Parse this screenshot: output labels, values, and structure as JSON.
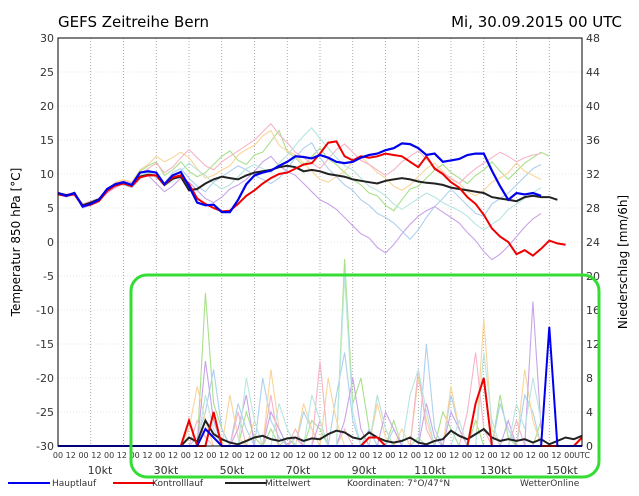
{
  "chart_data": {
    "type": "line",
    "title": "GEFS Zeitreihe Bern",
    "run_date": "Mi, 30.09.2015 00 UTC",
    "ylabel_left": "Temperatur 850 hPa [°C]",
    "ylabel_right": "Niederschlag [mm/6h]",
    "ylim_left": [
      -30,
      30
    ],
    "ylim_right": [
      0,
      48
    ],
    "yticks_left": [
      "30",
      "25",
      "20",
      "15",
      "10",
      "5",
      "0",
      "-5",
      "-10",
      "-15",
      "-20",
      "-25",
      "-30"
    ],
    "yticks_right": [
      "48",
      "44",
      "40",
      "36",
      "32",
      "28",
      "24",
      "20",
      "16",
      "12",
      "8",
      "4",
      "0"
    ],
    "time_ticks": [
      "00",
      "12",
      "00",
      "12",
      "00",
      "12",
      "00",
      "12",
      "00",
      "12",
      "00",
      "12",
      "00",
      "12",
      "00",
      "12",
      "00",
      "12",
      "00",
      "12",
      "00",
      "12",
      "00",
      "12",
      "00",
      "12",
      "00",
      "12",
      "00",
      "12",
      "00",
      "12",
      "00",
      "12",
      "00",
      "12",
      "00",
      "12",
      "00",
      "12",
      "00",
      "UTC"
    ],
    "wind_ticks": [
      "10kt",
      "30kt",
      "50kt",
      "70kt",
      "90kt",
      "110kt",
      "130kt",
      "150kt"
    ],
    "legend": [
      "Hauptlauf",
      "Kontrolllauf",
      "Mittelwert",
      "Koordinaten: 7°O/47°N",
      "WetterOnline"
    ],
    "steps_hours": 6,
    "temperature": {
      "hauptlauf": [
        7.2,
        6.8,
        7.2,
        5.2,
        5.6,
        6.2,
        7.8,
        8.5,
        8.8,
        8.4,
        10.2,
        10.4,
        10.2,
        8.5,
        9.8,
        10.3,
        8.2,
        5.8,
        5.4,
        5.5,
        4.4,
        4.4,
        6.2,
        8.5,
        9.8,
        10.2,
        10.5,
        11.2,
        11.8,
        12.6,
        12.5,
        12.3,
        12.8,
        12.4,
        11.8,
        11.6,
        11.8,
        12.4,
        12.8,
        13.0,
        13.5,
        13.8,
        14.5,
        14.4,
        13.8,
        12.8,
        13.0,
        11.8,
        12.0,
        12.2,
        12.8,
        13.0,
        13.0,
        10.5,
        8.2,
        6.2,
        7.2,
        7.0,
        7.2,
        6.8
      ],
      "kontrolllauf": [
        7.0,
        6.8,
        7.0,
        5.3,
        5.5,
        6.0,
        7.5,
        8.3,
        8.6,
        8.2,
        9.5,
        9.8,
        9.8,
        8.4,
        9.5,
        9.8,
        8.5,
        6.4,
        5.6,
        5.0,
        4.5,
        4.6,
        5.6,
        6.8,
        7.6,
        8.6,
        9.4,
        10.0,
        10.2,
        10.8,
        11.4,
        11.6,
        13.0,
        14.6,
        14.8,
        12.6,
        12.0,
        12.6,
        12.4,
        12.6,
        13.0,
        12.8,
        12.6,
        11.8,
        11.0,
        12.6,
        10.8,
        10.0,
        8.8,
        8.0,
        6.6,
        5.6,
        4.0,
        2.0,
        0.8,
        0.0,
        -1.8,
        -1.2,
        -2.0,
        -1.0,
        0.2,
        -0.2,
        -0.4
      ],
      "mittelwert": [
        7.2,
        6.9,
        7.1,
        5.4,
        5.8,
        6.3,
        7.6,
        8.4,
        8.7,
        8.3,
        9.6,
        9.9,
        9.8,
        8.4,
        9.3,
        9.6,
        7.6,
        7.8,
        8.6,
        9.2,
        9.6,
        9.4,
        9.2,
        9.8,
        10.2,
        10.4,
        10.6,
        11.0,
        11.2,
        11.0,
        10.4,
        10.6,
        10.4,
        10.0,
        9.8,
        9.6,
        9.2,
        9.0,
        8.8,
        8.6,
        9.0,
        9.2,
        9.4,
        9.2,
        8.9,
        8.7,
        8.6,
        8.4,
        8.0,
        7.8,
        7.6,
        7.4,
        7.2,
        6.6,
        6.4,
        6.2,
        6.0,
        6.6,
        6.8,
        6.6,
        6.6,
        6.2
      ],
      "members": [
        [
          7.0,
          6.7,
          7.3,
          5.2,
          5.8,
          6.4,
          7.8,
          8.2,
          8.9,
          8.6,
          10.4,
          11.2,
          11.8,
          9.8,
          10.6,
          11.8,
          10.4,
          9.6,
          10.2,
          11.4,
          12.6,
          13.4,
          12.0,
          11.4,
          12.8,
          13.2,
          14.8,
          16.4,
          13.2,
          12.4,
          11.2,
          12.6,
          13.8,
          12.2,
          11.4,
          10.2,
          9.2,
          8.4,
          7.2,
          6.8,
          5.4,
          4.6,
          6.2,
          7.8,
          8.2,
          9.4,
          10.6,
          11.4,
          10.2,
          9.4,
          8.6,
          9.8,
          10.6,
          11.8,
          10.4,
          9.2,
          10.4,
          11.6,
          12.4,
          13.2,
          12.6
        ],
        [
          7.1,
          6.9,
          7.0,
          5.4,
          5.6,
          6.0,
          7.4,
          8.6,
          8.4,
          8.0,
          9.2,
          10.6,
          9.4,
          8.6,
          10.2,
          10.8,
          9.4,
          8.2,
          7.4,
          8.8,
          9.6,
          10.4,
          11.2,
          10.6,
          9.8,
          9.2,
          8.6,
          9.4,
          10.8,
          12.4,
          13.8,
          14.6,
          12.4,
          10.8,
          9.6,
          8.4,
          7.6,
          6.2,
          5.4,
          4.2,
          3.6,
          2.8,
          1.6,
          0.4,
          1.8,
          3.6,
          5.2,
          6.4,
          7.8,
          6.6,
          5.4,
          4.2,
          3.8,
          5.6,
          6.4,
          7.2,
          8.4,
          9.6,
          10.8,
          11.4
        ],
        [
          7.3,
          6.8,
          7.2,
          5.5,
          5.9,
          6.2,
          7.6,
          8.8,
          9.2,
          8.8,
          10.6,
          11.4,
          12.6,
          11.8,
          12.4,
          13.2,
          12.4,
          10.8,
          9.4,
          9.8,
          10.6,
          11.2,
          12.8,
          13.6,
          14.2,
          15.6,
          16.4,
          14.2,
          13.4,
          12.8,
          11.6,
          10.4,
          9.2,
          8.8,
          9.6,
          10.4,
          11.8,
          12.6,
          11.4,
          10.2,
          9.4,
          8.2,
          7.6,
          8.4,
          9.6,
          10.8,
          11.6,
          10.4,
          9.2,
          8.6,
          7.4,
          6.8,
          7.6,
          8.8,
          9.4,
          10.2,
          11.6,
          10.4,
          9.8,
          9.2
        ],
        [
          7.0,
          6.6,
          7.1,
          5.0,
          5.4,
          6.1,
          7.2,
          8.0,
          8.6,
          8.2,
          9.4,
          9.8,
          8.6,
          7.4,
          8.2,
          9.4,
          8.8,
          7.6,
          6.4,
          5.8,
          6.6,
          7.8,
          8.4,
          9.2,
          10.4,
          11.8,
          12.6,
          11.2,
          10.4,
          9.8,
          8.6,
          7.4,
          6.2,
          5.6,
          4.8,
          3.6,
          2.4,
          1.2,
          0.6,
          -0.8,
          -1.6,
          -0.4,
          1.2,
          2.6,
          3.8,
          4.6,
          5.2,
          4.4,
          3.6,
          2.8,
          1.4,
          0.2,
          -1.4,
          -2.6,
          -1.8,
          -0.6,
          0.8,
          2.2,
          3.4,
          4.2
        ],
        [
          7.2,
          7.0,
          7.3,
          5.6,
          6.0,
          6.4,
          7.8,
          8.6,
          9.0,
          8.7,
          10.0,
          10.8,
          11.6,
          10.2,
          11.0,
          12.4,
          13.6,
          12.4,
          11.2,
          10.6,
          11.8,
          12.6,
          13.4,
          14.2,
          15.0,
          16.2,
          17.4,
          15.8,
          14.6,
          13.2,
          12.4,
          11.6,
          10.8,
          12.2,
          13.6,
          14.4,
          13.2,
          12.0,
          11.4,
          10.6,
          9.8,
          10.6,
          11.8,
          12.6,
          13.4,
          12.2,
          11.0,
          10.2,
          9.4,
          8.6,
          9.8,
          10.8,
          11.6,
          12.4,
          13.2,
          12.6,
          11.8,
          12.4,
          12.8,
          13.0
        ],
        [
          7.1,
          6.8,
          7.0,
          5.3,
          5.7,
          6.3,
          7.5,
          8.4,
          8.8,
          8.5,
          9.8,
          10.2,
          9.6,
          8.2,
          9.0,
          10.4,
          11.6,
          10.6,
          9.8,
          8.6,
          7.8,
          8.4,
          9.6,
          10.8,
          11.4,
          10.8,
          10.2,
          11.6,
          12.8,
          14.2,
          15.6,
          16.8,
          15.2,
          13.8,
          12.4,
          11.2,
          10.6,
          9.4,
          8.2,
          7.6,
          6.8,
          5.6,
          4.8,
          5.6,
          6.4,
          7.2,
          6.6,
          5.8,
          5.2,
          4.6,
          3.8,
          2.6,
          1.8,
          2.6,
          3.4,
          4.8,
          5.6,
          6.4,
          7.2,
          8.0
        ]
      ]
    },
    "precipitation_mm6h": {
      "hauptlauf": [
        0,
        0,
        0,
        0,
        0,
        0,
        0,
        0,
        0,
        0,
        0,
        0,
        0,
        0,
        0,
        0,
        0,
        0,
        2,
        1,
        0,
        0,
        0,
        0,
        0,
        0,
        0,
        0,
        0,
        0,
        0,
        0,
        0,
        0,
        0,
        0,
        0,
        0,
        0,
        0,
        0,
        0,
        0,
        0,
        0,
        0,
        0,
        0,
        0,
        0,
        0,
        0,
        0,
        0,
        0,
        0,
        0,
        0,
        0,
        0,
        14,
        0,
        0,
        0,
        0
      ],
      "kontrolllauf": [
        0,
        0,
        0,
        0,
        0,
        0,
        0,
        0,
        0,
        0,
        0,
        0,
        0,
        0,
        0,
        0,
        3,
        0,
        0,
        4,
        0,
        0,
        0,
        0,
        0,
        0,
        0,
        0,
        0,
        0,
        0,
        0,
        0,
        0,
        0,
        0,
        0,
        0,
        1,
        1,
        0,
        0,
        0,
        0,
        0,
        0,
        0,
        0,
        0,
        0,
        0,
        5,
        8,
        0,
        0,
        0,
        0,
        0,
        0,
        0,
        0,
        0,
        0,
        0,
        1,
        1
      ],
      "mittelwert": [
        0,
        0,
        0,
        0,
        0,
        0,
        0,
        0,
        0,
        0,
        0,
        0,
        0,
        0,
        0,
        0,
        1,
        0.5,
        3,
        1.4,
        0.8,
        0.4,
        0.2,
        0.6,
        1.0,
        1.2,
        0.8,
        0.6,
        0.9,
        1.0,
        0.6,
        0.9,
        0.8,
        1.4,
        1.8,
        1.6,
        1.0,
        0.8,
        1.6,
        1.0,
        0.6,
        0.4,
        0.6,
        1.0,
        0.4,
        0.2,
        0.6,
        0.8,
        1.8,
        1.2,
        0.8,
        1.4,
        2.0,
        1.0,
        0.6,
        0.8,
        0.6,
        0.8,
        0.4,
        0.8,
        0.2,
        0.6,
        1.0,
        0.8,
        1.2,
        1.0
      ],
      "members": [
        [
          0,
          0,
          0,
          0,
          0,
          0,
          0,
          0,
          0,
          0,
          0,
          0,
          0,
          0,
          0,
          0,
          0,
          0,
          18,
          5,
          2,
          0,
          0,
          4,
          1,
          0,
          2,
          0,
          1,
          0,
          0,
          3,
          2,
          0,
          0,
          22,
          5,
          8,
          2,
          0,
          0,
          3,
          0,
          0,
          1,
          0,
          0,
          4,
          2,
          0,
          0,
          3,
          0,
          0,
          6,
          1,
          0,
          0,
          0,
          3
        ],
        [
          0,
          0,
          0,
          0,
          0,
          0,
          0,
          0,
          0,
          0,
          0,
          0,
          0,
          0,
          0,
          0,
          0,
          1,
          4,
          9,
          2,
          0,
          5,
          2,
          0,
          8,
          3,
          1,
          0,
          0,
          4,
          2,
          0,
          0,
          6,
          11,
          3,
          0,
          2,
          0,
          0,
          2,
          0,
          0,
          0,
          12,
          2,
          0,
          6,
          2,
          0,
          0,
          0,
          0,
          5,
          2,
          0,
          6,
          4,
          0
        ],
        [
          0,
          0,
          0,
          0,
          0,
          0,
          0,
          0,
          0,
          0,
          0,
          0,
          0,
          0,
          0,
          0,
          2,
          7,
          3,
          0,
          0,
          6,
          1,
          0,
          3,
          0,
          9,
          2,
          0,
          0,
          5,
          2,
          0,
          8,
          3,
          0,
          0,
          0,
          0,
          5,
          1,
          0,
          2,
          0,
          8,
          3,
          0,
          0,
          7,
          2,
          0,
          0,
          15,
          2,
          0,
          0,
          0,
          9,
          3,
          0
        ],
        [
          0,
          0,
          0,
          0,
          0,
          0,
          0,
          0,
          0,
          0,
          0,
          0,
          0,
          0,
          0,
          0,
          0,
          0,
          10,
          3,
          0,
          0,
          2,
          6,
          0,
          0,
          4,
          2,
          0,
          1,
          0,
          0,
          3,
          0,
          0,
          3,
          8,
          2,
          0,
          0,
          4,
          2,
          0,
          0,
          0,
          5,
          1,
          0,
          4,
          2,
          0,
          0,
          0,
          0,
          0,
          3,
          0,
          0,
          17,
          2
        ],
        [
          0,
          0,
          0,
          0,
          0,
          0,
          0,
          0,
          0,
          0,
          0,
          0,
          0,
          0,
          0,
          0,
          0,
          3,
          1,
          0,
          0,
          0,
          4,
          0,
          0,
          0,
          6,
          0,
          0,
          2,
          0,
          0,
          10,
          0,
          0,
          2,
          0,
          0,
          0,
          6,
          2,
          0,
          0,
          0,
          9,
          2,
          0,
          0,
          0,
          0,
          4,
          11,
          2,
          0,
          0,
          0,
          3,
          0,
          0,
          0
        ],
        [
          0,
          0,
          0,
          0,
          0,
          0,
          0,
          0,
          0,
          0,
          0,
          0,
          0,
          0,
          0,
          0,
          0,
          0,
          6,
          2,
          0,
          0,
          0,
          8,
          3,
          0,
          0,
          5,
          2,
          0,
          0,
          6,
          3,
          0,
          0,
          20,
          4,
          0,
          0,
          6,
          2,
          0,
          0,
          6,
          9,
          4,
          0,
          0,
          0,
          3,
          0,
          0,
          11,
          3,
          0,
          0,
          5,
          2,
          8,
          3
        ]
      ]
    },
    "colors": {
      "hauptlauf": "#0000ee",
      "kontrolllauf": "#ee0000",
      "mittelwert": "#222222",
      "highlight": "#33dd33",
      "members": [
        "#a8e08a",
        "#aed0ef",
        "#f8d59a",
        "#c9a3e8",
        "#f5b5c8",
        "#b8e6e0"
      ]
    }
  }
}
